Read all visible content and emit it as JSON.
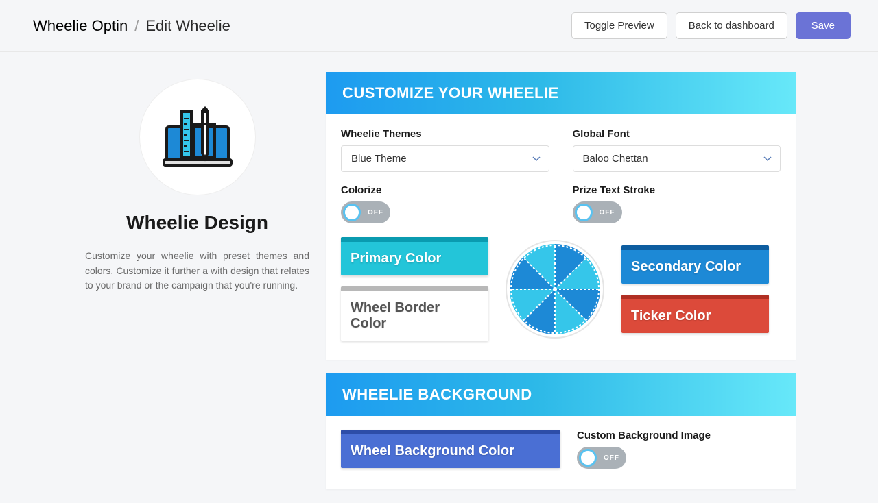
{
  "header": {
    "breadcrumb_root": "Wheelie Optin",
    "breadcrumb_sep": "/",
    "breadcrumb_current": "Edit Wheelie",
    "toggle_preview": "Toggle Preview",
    "back_to_dashboard": "Back to dashboard",
    "save": "Save"
  },
  "sidebar": {
    "title": "Wheelie Design",
    "description": "Customize your wheelie with preset themes and colors. Customize it further a with design that relates to your brand or the campaign that you're running."
  },
  "customize": {
    "panel_title": "CUSTOMIZE YOUR WHEELIE",
    "themes_label": "Wheelie Themes",
    "themes_value": "Blue Theme",
    "font_label": "Global Font",
    "font_value": "Baloo Chettan",
    "colorize_label": "Colorize",
    "prize_stroke_label": "Prize Text Stroke",
    "toggle_off": "OFF",
    "primary_color_label": "Primary Color",
    "primary_color_top": "#0a9bb0",
    "primary_color_body": "#23c5d9",
    "wheel_border_label": "Wheel Border Color",
    "wheel_border_top": "#b8b8b8",
    "wheel_border_body": "#ffffff",
    "wheel_border_text": "#555",
    "secondary_color_label": "Secondary Color",
    "secondary_color_top": "#0d5da0",
    "secondary_color_body": "#1d89d6",
    "ticker_color_label": "Ticker Color",
    "ticker_color_top": "#b02f23",
    "ticker_color_body": "#dc4a3a",
    "wheel_slice_a": "#1d89d6",
    "wheel_slice_b": "#35c6ea"
  },
  "background": {
    "panel_title": "WHEELIE BACKGROUND",
    "bg_color_label": "Wheel Background Color",
    "bg_color_top": "#2d4da8",
    "bg_color_body": "#4a6fd4",
    "custom_bg_label": "Custom Background Image",
    "toggle_off": "OFF"
  }
}
